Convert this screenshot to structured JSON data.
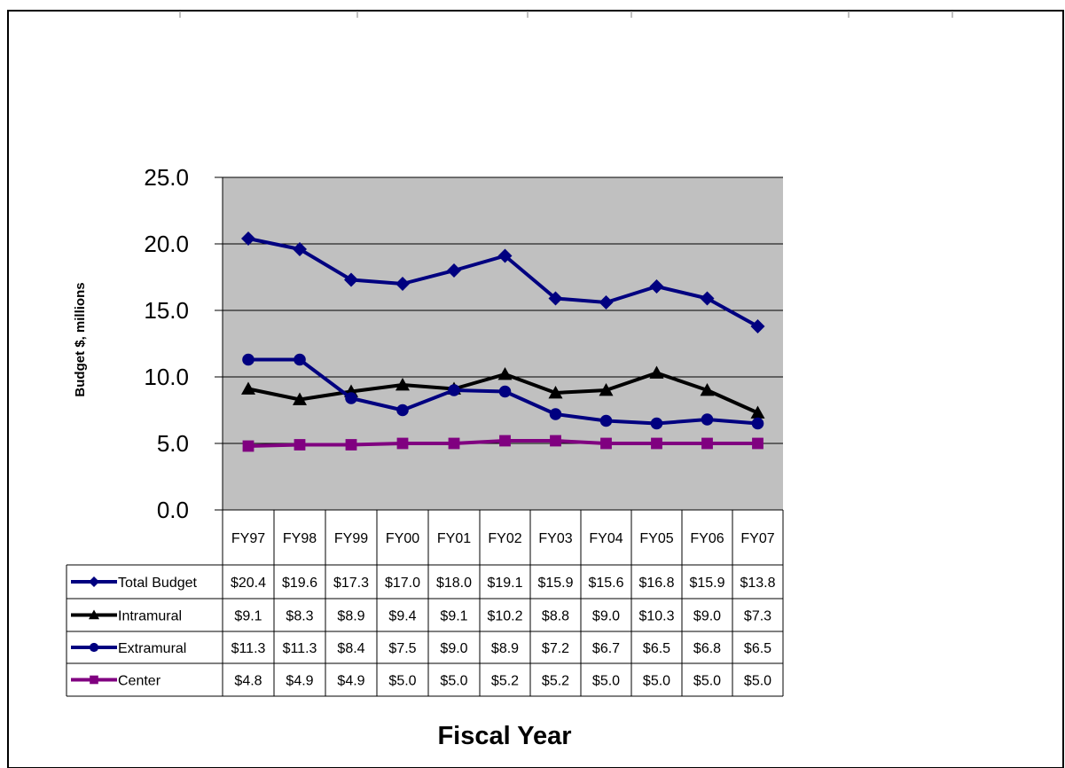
{
  "chart_data": {
    "type": "line",
    "categories": [
      "FY97",
      "FY98",
      "FY99",
      "FY00",
      "FY01",
      "FY02",
      "FY03",
      "FY04",
      "FY05",
      "FY06",
      "FY07"
    ],
    "series": [
      {
        "name": "Total Budget",
        "values": [
          20.4,
          19.6,
          17.3,
          17.0,
          18.0,
          19.1,
          15.9,
          15.6,
          16.8,
          15.9,
          13.8
        ],
        "color": "#000080",
        "marker": "diamond"
      },
      {
        "name": "Intramural",
        "values": [
          9.1,
          8.3,
          8.9,
          9.4,
          9.1,
          10.2,
          8.8,
          9.0,
          10.3,
          9.0,
          7.3
        ],
        "color": "#000000",
        "marker": "triangle"
      },
      {
        "name": "Extramural",
        "values": [
          11.3,
          11.3,
          8.4,
          7.5,
          9.0,
          8.9,
          7.2,
          6.7,
          6.5,
          6.8,
          6.5
        ],
        "color": "#000080",
        "marker": "circle"
      },
      {
        "name": "Center",
        "values": [
          4.8,
          4.9,
          4.9,
          5.0,
          5.0,
          5.2,
          5.2,
          5.0,
          5.0,
          5.0,
          5.0
        ],
        "color": "#800080",
        "marker": "square"
      }
    ],
    "table_values": [
      [
        "$20.4",
        "$19.6",
        "$17.3",
        "$17.0",
        "$18.0",
        "$19.1",
        "$15.9",
        "$15.6",
        "$16.8",
        "$15.9",
        "$13.8"
      ],
      [
        "$9.1",
        "$8.3",
        "$8.9",
        "$9.4",
        "$9.1",
        "$10.2",
        "$8.8",
        "$9.0",
        "$10.3",
        "$9.0",
        "$7.3"
      ],
      [
        "$11.3",
        "$11.3",
        "$8.4",
        "$7.5",
        "$9.0",
        "$8.9",
        "$7.2",
        "$6.7",
        "$6.5",
        "$6.8",
        "$6.5"
      ],
      [
        "$4.8",
        "$4.9",
        "$4.9",
        "$5.0",
        "$5.0",
        "$5.2",
        "$5.2",
        "$5.0",
        "$5.0",
        "$5.0",
        "$5.0"
      ]
    ],
    "y_ticks": [
      "0.0",
      "5.0",
      "10.0",
      "15.0",
      "20.0",
      "25.0"
    ],
    "ylim": [
      0,
      25
    ],
    "ylabel": "Budget $, millions",
    "xlabel": "Fiscal Year",
    "grid": true,
    "legend": "data-table",
    "plot_background": "#c0c0c0"
  }
}
